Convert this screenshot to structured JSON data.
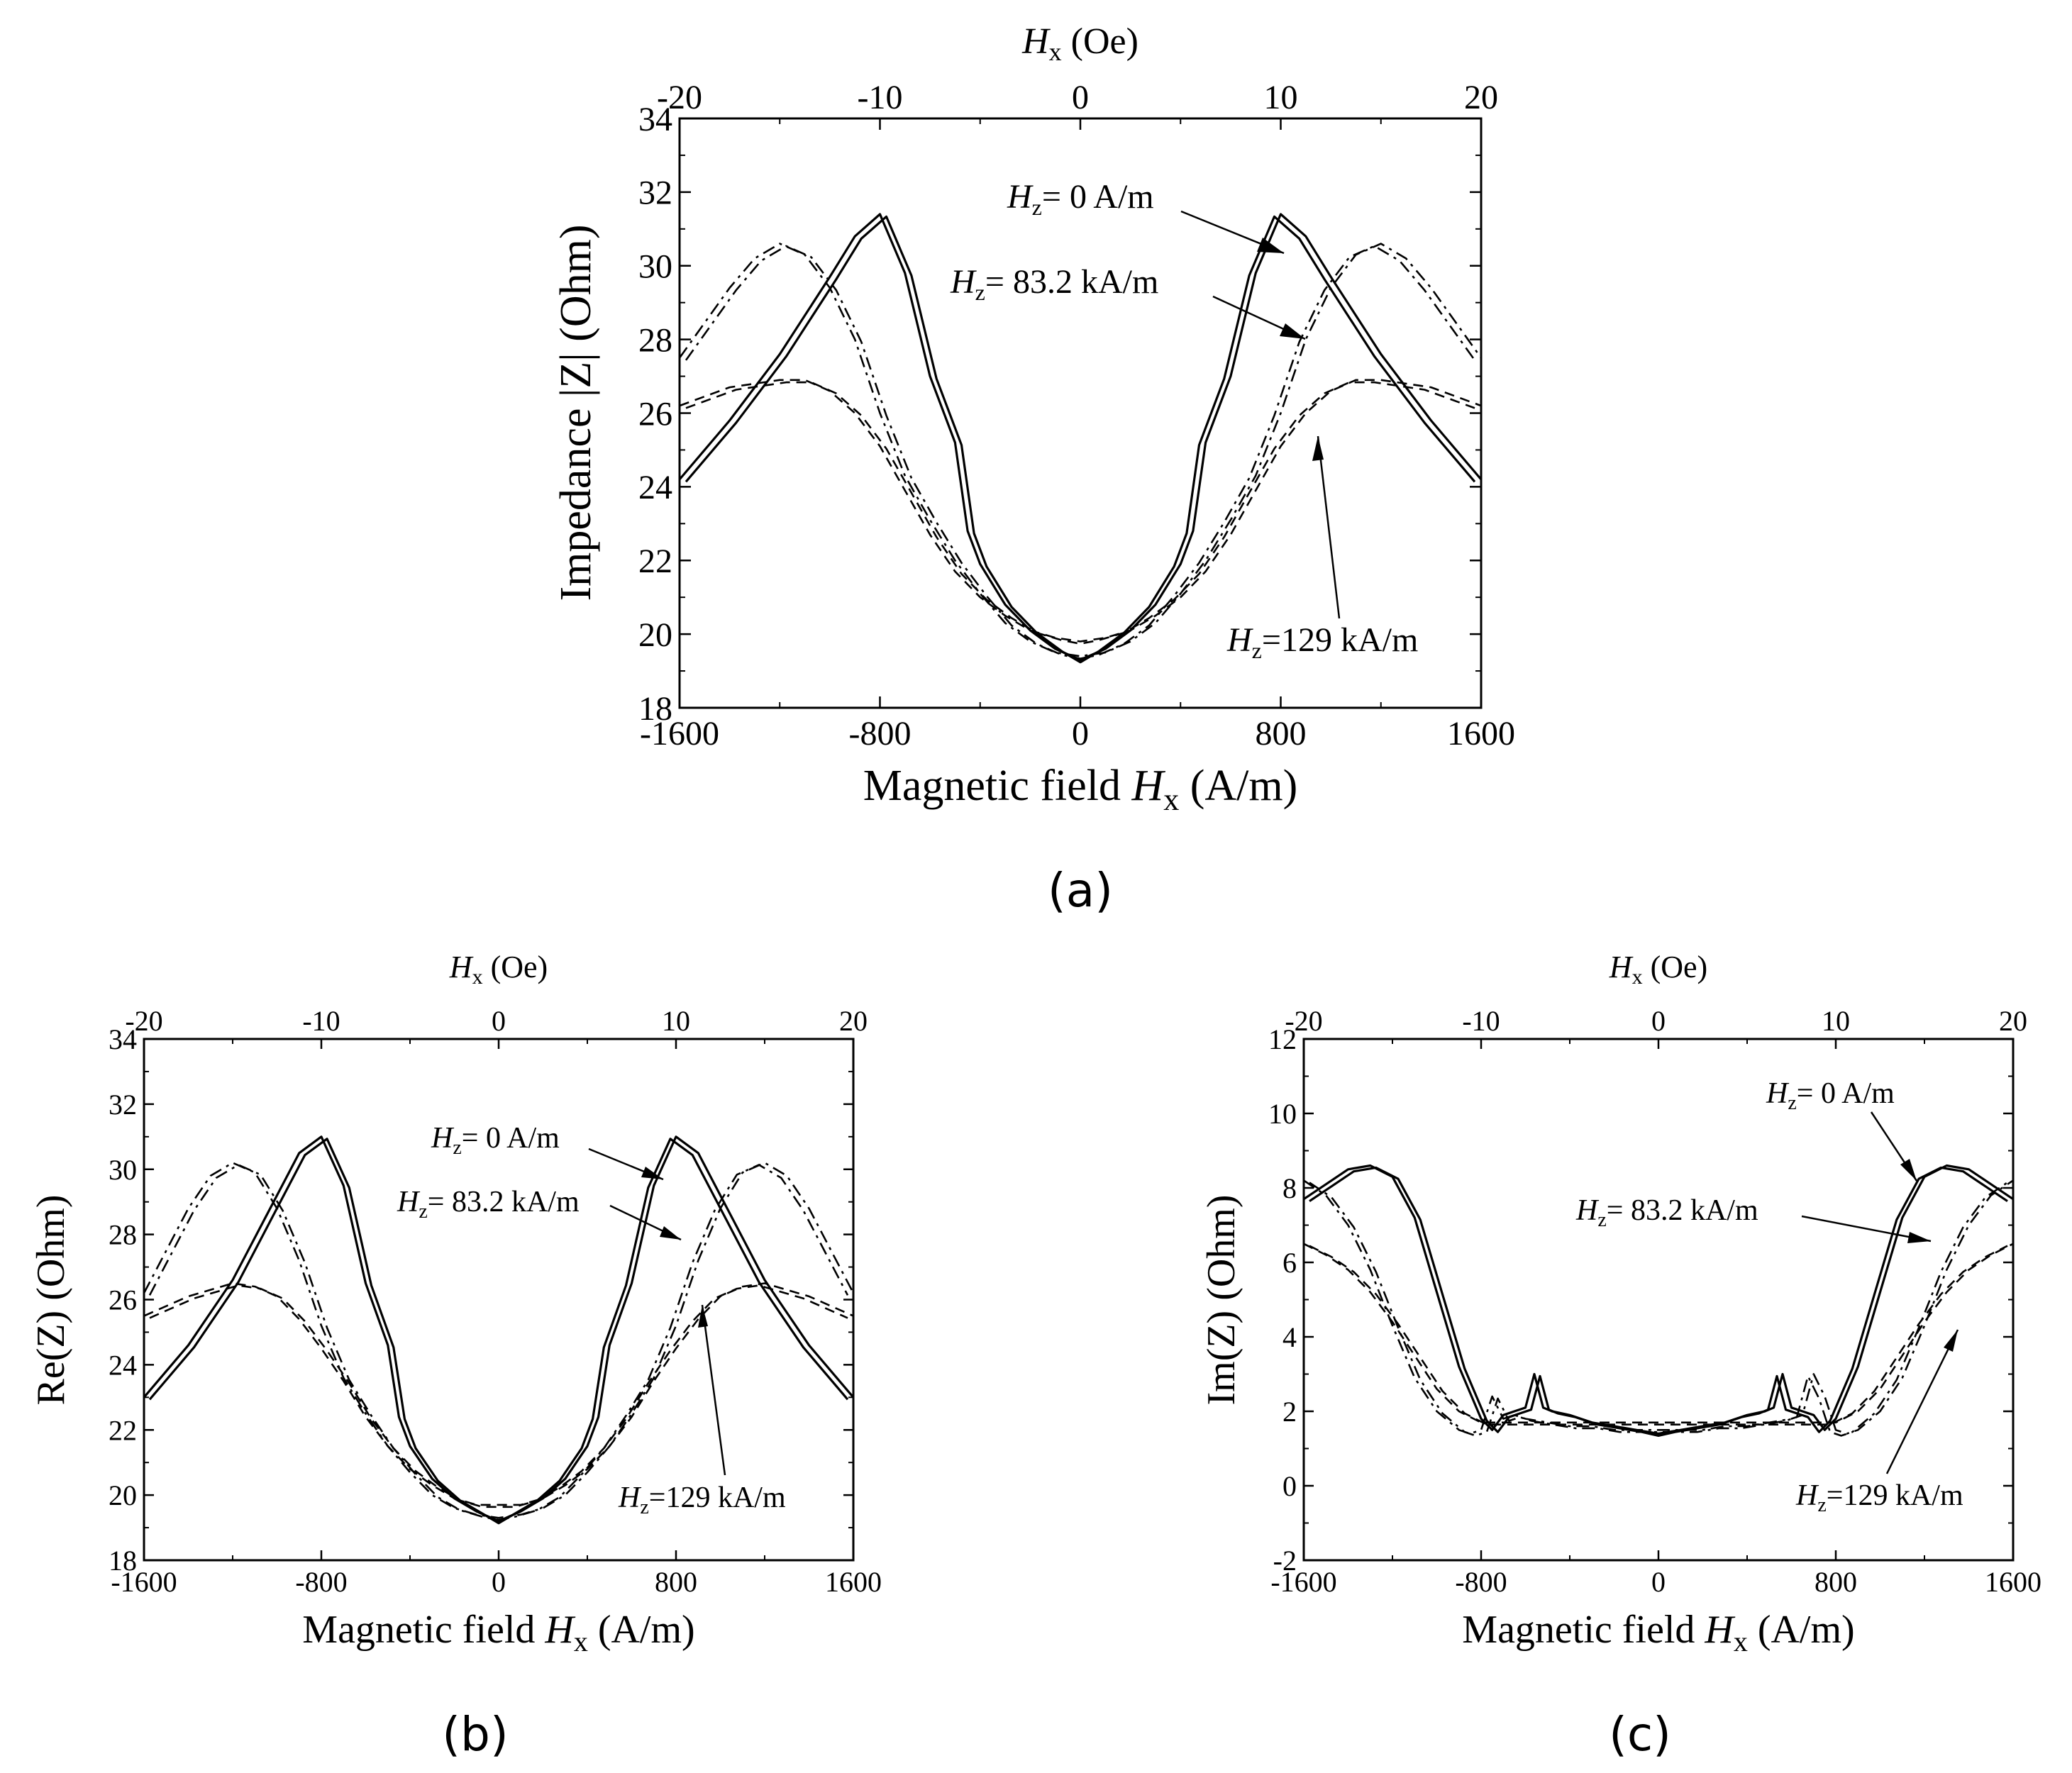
{
  "figure": {
    "panels": [
      {
        "id": "a",
        "panel_label": "(a)",
        "xlabel": {
          "prefix": "Magnetic field ",
          "var": "H",
          "sub": "x",
          "unit": " (A/m)"
        },
        "top_xlabel": {
          "var": "H",
          "sub": "x",
          "unit": " (Oe)"
        },
        "ylabel": {
          "text": "Impedance |Z| (Ohm)"
        },
        "annotations": [
          {
            "var": "H",
            "sub": "z",
            "text": "= 0 A/m"
          },
          {
            "var": "H",
            "sub": "z",
            "text": "= 83.2 kA/m"
          },
          {
            "var": "H",
            "sub": "z",
            "text": "=129 kA/m"
          }
        ]
      },
      {
        "id": "b",
        "panel_label": "(b)",
        "xlabel": {
          "prefix": "Magnetic field ",
          "var": "H",
          "sub": "x",
          "unit": " (A/m)"
        },
        "top_xlabel": {
          "var": "H",
          "sub": "x",
          "unit": " (Oe)"
        },
        "ylabel": {
          "text": "Re(Z) (Ohm)"
        },
        "annotations": [
          {
            "var": "H",
            "sub": "z",
            "text": "= 0 A/m"
          },
          {
            "var": "H",
            "sub": "z",
            "text": "= 83.2 kA/m"
          },
          {
            "var": "H",
            "sub": "z",
            "text": "=129 kA/m"
          }
        ]
      },
      {
        "id": "c",
        "panel_label": "(c)",
        "xlabel": {
          "prefix": "Magnetic field ",
          "var": "H",
          "sub": "x",
          "unit": " (A/m)"
        },
        "top_xlabel": {
          "var": "H",
          "sub": "x",
          "unit": " (Oe)"
        },
        "ylabel": {
          "text": "Im(Z) (Ohm)"
        },
        "annotations": [
          {
            "var": "H",
            "sub": "z",
            "text": "= 0 A/m"
          },
          {
            "var": "H",
            "sub": "z",
            "text": "= 83.2 kA/m"
          },
          {
            "var": "H",
            "sub": "z",
            "text": "=129 kA/m"
          }
        ]
      }
    ]
  },
  "chart_data": [
    {
      "type": "line",
      "panel": "a",
      "title": "",
      "xlabel": "Magnetic field Hx (A/m)",
      "ylabel": "Impedance |Z| (Ohm)",
      "top_xlabel": "Hx (Oe)",
      "xlim": [
        -1600,
        1600
      ],
      "ylim": [
        18,
        34
      ],
      "xticks": [
        -1600,
        -800,
        0,
        800,
        1600
      ],
      "yticks": [
        18,
        20,
        22,
        24,
        26,
        28,
        30,
        32,
        34
      ],
      "top_xticks": [
        -20,
        -10,
        0,
        10,
        20
      ],
      "series": [
        {
          "name": "Hz = 0 A/m",
          "style": "solid",
          "x": [
            -1600,
            -1400,
            -1200,
            -1000,
            -900,
            -800,
            -700,
            -600,
            -500,
            -450,
            -400,
            -300,
            -200,
            -100,
            0,
            100,
            200,
            300,
            400,
            450,
            500,
            600,
            700,
            800,
            900,
            1000,
            1200,
            1400,
            1600
          ],
          "y": [
            24.2,
            25.8,
            27.6,
            29.7,
            30.8,
            31.4,
            29.8,
            27.0,
            25.2,
            22.8,
            21.9,
            20.8,
            20.1,
            19.6,
            19.3,
            19.6,
            20.1,
            20.8,
            21.9,
            22.8,
            25.2,
            27.0,
            29.8,
            31.4,
            30.8,
            29.7,
            27.6,
            25.8,
            24.2
          ]
        },
        {
          "name": "Hz = 83.2 kA/m",
          "style": "dashdot",
          "x": [
            -1600,
            -1400,
            -1300,
            -1200,
            -1100,
            -1000,
            -900,
            -800,
            -700,
            -600,
            -500,
            -400,
            -300,
            -200,
            -100,
            0,
            100,
            200,
            300,
            400,
            500,
            600,
            700,
            800,
            900,
            1000,
            1100,
            1200,
            1300,
            1400,
            1600
          ],
          "y": [
            27.5,
            29.4,
            30.2,
            30.6,
            30.3,
            29.4,
            28.0,
            26.0,
            24.3,
            23.1,
            22.0,
            21.1,
            20.3,
            19.8,
            19.5,
            19.4,
            19.5,
            19.8,
            20.3,
            21.1,
            22.0,
            23.1,
            24.3,
            26.0,
            28.0,
            29.4,
            30.3,
            30.6,
            30.2,
            29.4,
            27.5
          ]
        },
        {
          "name": "Hz = 129 kA/m",
          "style": "dashed",
          "x": [
            -1600,
            -1400,
            -1200,
            -1100,
            -1000,
            -900,
            -800,
            -700,
            -600,
            -500,
            -400,
            -300,
            -200,
            -100,
            0,
            100,
            200,
            300,
            400,
            500,
            600,
            700,
            800,
            900,
            1000,
            1100,
            1200,
            1400,
            1600
          ],
          "y": [
            26.2,
            26.7,
            26.9,
            26.9,
            26.6,
            26.0,
            25.1,
            23.9,
            22.7,
            21.7,
            21.0,
            20.5,
            20.1,
            19.9,
            19.8,
            19.9,
            20.1,
            20.5,
            21.0,
            21.7,
            22.7,
            23.9,
            25.1,
            26.0,
            26.6,
            26.9,
            26.9,
            26.7,
            26.2
          ]
        }
      ]
    },
    {
      "type": "line",
      "panel": "b",
      "title": "",
      "xlabel": "Magnetic field Hx (A/m)",
      "ylabel": "Re(Z) (Ohm)",
      "top_xlabel": "Hx (Oe)",
      "xlim": [
        -1600,
        1600
      ],
      "ylim": [
        18,
        34
      ],
      "xticks": [
        -1600,
        -800,
        0,
        800,
        1600
      ],
      "yticks": [
        18,
        20,
        22,
        24,
        26,
        28,
        30,
        32,
        34
      ],
      "top_xticks": [
        -20,
        -10,
        0,
        10,
        20
      ],
      "series": [
        {
          "name": "Hz = 0 A/m",
          "style": "solid",
          "x": [
            -1600,
            -1400,
            -1200,
            -1000,
            -900,
            -800,
            -700,
            -600,
            -500,
            -450,
            -400,
            -300,
            -200,
            -100,
            0,
            100,
            200,
            300,
            400,
            450,
            500,
            600,
            700,
            800,
            900,
            1000,
            1200,
            1400,
            1600
          ],
          "y": [
            23.0,
            24.6,
            26.6,
            29.2,
            30.5,
            31.0,
            29.5,
            26.5,
            24.6,
            22.4,
            21.5,
            20.5,
            19.9,
            19.5,
            19.2,
            19.5,
            19.9,
            20.5,
            21.5,
            22.4,
            24.6,
            26.5,
            29.5,
            31.0,
            30.5,
            29.2,
            26.6,
            24.6,
            23.0
          ]
        },
        {
          "name": "Hz = 83.2 kA/m",
          "style": "dashdot",
          "x": [
            -1600,
            -1400,
            -1300,
            -1200,
            -1100,
            -1000,
            -900,
            -800,
            -700,
            -600,
            -500,
            -400,
            -300,
            -200,
            -100,
            0,
            100,
            200,
            300,
            400,
            500,
            600,
            700,
            800,
            900,
            1000,
            1100,
            1200,
            1300,
            1400,
            1600
          ],
          "y": [
            26.2,
            28.8,
            29.8,
            30.2,
            29.9,
            28.8,
            27.2,
            25.2,
            23.6,
            22.5,
            21.5,
            20.7,
            20.0,
            19.6,
            19.4,
            19.3,
            19.4,
            19.6,
            20.0,
            20.7,
            21.5,
            22.5,
            23.6,
            25.2,
            27.2,
            28.8,
            29.9,
            30.2,
            29.8,
            28.8,
            26.2
          ]
        },
        {
          "name": "Hz = 129 kA/m",
          "style": "dashed",
          "x": [
            -1600,
            -1400,
            -1200,
            -1100,
            -1000,
            -900,
            -800,
            -700,
            -600,
            -500,
            -400,
            -300,
            -200,
            -100,
            0,
            100,
            200,
            300,
            400,
            500,
            600,
            700,
            800,
            900,
            1000,
            1100,
            1200,
            1400,
            1600
          ],
          "y": [
            25.5,
            26.1,
            26.5,
            26.4,
            26.1,
            25.4,
            24.5,
            23.5,
            22.4,
            21.5,
            20.8,
            20.3,
            19.9,
            19.7,
            19.7,
            19.7,
            19.9,
            20.3,
            20.8,
            21.5,
            22.4,
            23.5,
            24.5,
            25.4,
            26.1,
            26.4,
            26.5,
            26.1,
            25.5
          ]
        }
      ]
    },
    {
      "type": "line",
      "panel": "c",
      "title": "",
      "xlabel": "Magnetic field Hx (A/m)",
      "ylabel": "Im(Z) (Ohm)",
      "top_xlabel": "Hx (Oe)",
      "xlim": [
        -1600,
        1600
      ],
      "ylim": [
        -2,
        12
      ],
      "xticks": [
        -1600,
        -800,
        0,
        800,
        1600
      ],
      "yticks": [
        -2,
        0,
        2,
        4,
        6,
        8,
        10,
        12
      ],
      "top_xticks": [
        -20,
        -10,
        0,
        10,
        20
      ],
      "series": [
        {
          "name": "Hz = 0 A/m",
          "style": "solid",
          "x": [
            -1600,
            -1500,
            -1400,
            -1300,
            -1200,
            -1100,
            -1000,
            -900,
            -800,
            -750,
            -700,
            -650,
            -600,
            -560,
            -520,
            -480,
            -400,
            -300,
            -200,
            -100,
            0,
            100,
            200,
            300,
            400,
            480,
            520,
            560,
            600,
            650,
            700,
            750,
            800,
            900,
            1000,
            1100,
            1200,
            1300,
            1400,
            1500,
            1600
          ],
          "y": [
            7.7,
            8.1,
            8.5,
            8.6,
            8.3,
            7.2,
            5.2,
            3.2,
            1.8,
            1.5,
            1.9,
            2.0,
            2.1,
            3.0,
            2.1,
            2.0,
            1.9,
            1.7,
            1.6,
            1.5,
            1.4,
            1.5,
            1.6,
            1.7,
            1.9,
            2.0,
            2.1,
            3.0,
            2.1,
            2.0,
            1.9,
            1.5,
            1.8,
            3.2,
            5.2,
            7.2,
            8.3,
            8.6,
            8.5,
            8.1,
            7.7
          ]
        },
        {
          "name": "Hz = 83.2 kA/m",
          "style": "dashdot",
          "x": [
            -1600,
            -1500,
            -1400,
            -1300,
            -1200,
            -1100,
            -1000,
            -900,
            -850,
            -800,
            -750,
            -700,
            -650,
            -600,
            -500,
            -400,
            -300,
            -200,
            -100,
            0,
            100,
            200,
            300,
            400,
            500,
            600,
            650,
            700,
            750,
            800,
            850,
            900,
            1000,
            1100,
            1200,
            1300,
            1400,
            1500,
            1600
          ],
          "y": [
            8.2,
            7.8,
            7.0,
            5.8,
            4.3,
            2.9,
            2.0,
            1.5,
            1.4,
            1.5,
            2.4,
            1.8,
            1.9,
            1.8,
            1.7,
            1.6,
            1.6,
            1.5,
            1.5,
            1.5,
            1.5,
            1.5,
            1.6,
            1.6,
            1.7,
            1.8,
            1.9,
            3.0,
            2.4,
            1.5,
            1.4,
            1.5,
            2.0,
            2.9,
            4.3,
            5.8,
            7.0,
            7.8,
            8.2
          ]
        },
        {
          "name": "Hz = 129 kA/m",
          "style": "dashed",
          "x": [
            -1600,
            -1500,
            -1400,
            -1300,
            -1200,
            -1100,
            -1000,
            -900,
            -800,
            -700,
            -600,
            -500,
            -400,
            -300,
            -200,
            -100,
            0,
            100,
            200,
            300,
            400,
            500,
            600,
            700,
            800,
            900,
            1000,
            1100,
            1200,
            1300,
            1400,
            1500,
            1600
          ],
          "y": [
            6.5,
            6.2,
            5.8,
            5.2,
            4.4,
            3.5,
            2.6,
            2.0,
            1.7,
            1.7,
            1.7,
            1.7,
            1.7,
            1.7,
            1.7,
            1.7,
            1.7,
            1.7,
            1.7,
            1.7,
            1.7,
            1.7,
            1.7,
            1.7,
            1.7,
            2.0,
            2.6,
            3.5,
            4.4,
            5.2,
            5.8,
            6.2,
            6.5
          ]
        }
      ]
    }
  ]
}
